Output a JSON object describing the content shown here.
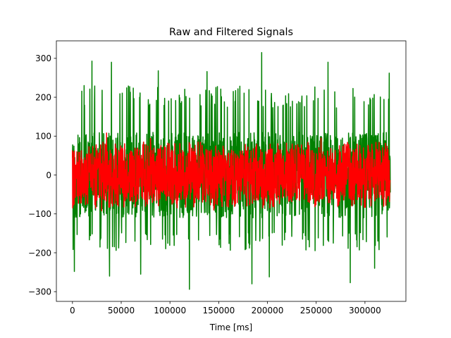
{
  "chart_data": {
    "type": "line",
    "title": "Raw and Filtered Signals",
    "xlabel": "Time [ms]",
    "ylabel": "",
    "xlim": [
      -16500,
      342000
    ],
    "ylim": [
      -325,
      345
    ],
    "x_ticks": [
      0,
      50000,
      100000,
      150000,
      200000,
      250000,
      300000
    ],
    "x_tick_labels": [
      "0",
      "50000",
      "100000",
      "150000",
      "200000",
      "250000",
      "300000"
    ],
    "y_ticks": [
      -300,
      -200,
      -100,
      0,
      100,
      200,
      300
    ],
    "y_tick_labels": [
      "−300",
      "−200",
      "−100",
      "0",
      "100",
      "200",
      "300"
    ],
    "grid": false,
    "legend": "none",
    "x_range": [
      0,
      326000
    ],
    "series": [
      {
        "color": "#008000",
        "envelope": {
          "core_min": -110,
          "core_max": 110,
          "typical_max": 230,
          "typical_min": -195,
          "peaks": [
            {
              "x": 12000,
              "y": 230
            },
            {
              "x": 20000,
              "y": 293
            },
            {
              "x": 40000,
              "y": 290
            },
            {
              "x": 88000,
              "y": 268
            },
            {
              "x": 138000,
              "y": 266
            },
            {
              "x": 194000,
              "y": 315
            },
            {
              "x": 262000,
              "y": 290
            },
            {
              "x": 325000,
              "y": 262
            }
          ],
          "troughs": [
            {
              "x": 2000,
              "y": -248
            },
            {
              "x": 38000,
              "y": -260
            },
            {
              "x": 70000,
              "y": -255
            },
            {
              "x": 120000,
              "y": -294
            },
            {
              "x": 184000,
              "y": -280
            },
            {
              "x": 202000,
              "y": -262
            },
            {
              "x": 285000,
              "y": -277
            },
            {
              "x": 310000,
              "y": -240
            }
          ]
        }
      },
      {
        "color": "#ff0000",
        "envelope": {
          "core_min": -65,
          "core_max": 65,
          "typical_max": 85,
          "typical_min": -85,
          "peaks": [
            {
              "x": 35000,
              "y": 108
            },
            {
              "x": 80000,
              "y": 94
            },
            {
              "x": 255000,
              "y": 95
            }
          ],
          "troughs": [
            {
              "x": 30000,
              "y": -92
            },
            {
              "x": 145000,
              "y": -90
            }
          ]
        }
      }
    ]
  }
}
